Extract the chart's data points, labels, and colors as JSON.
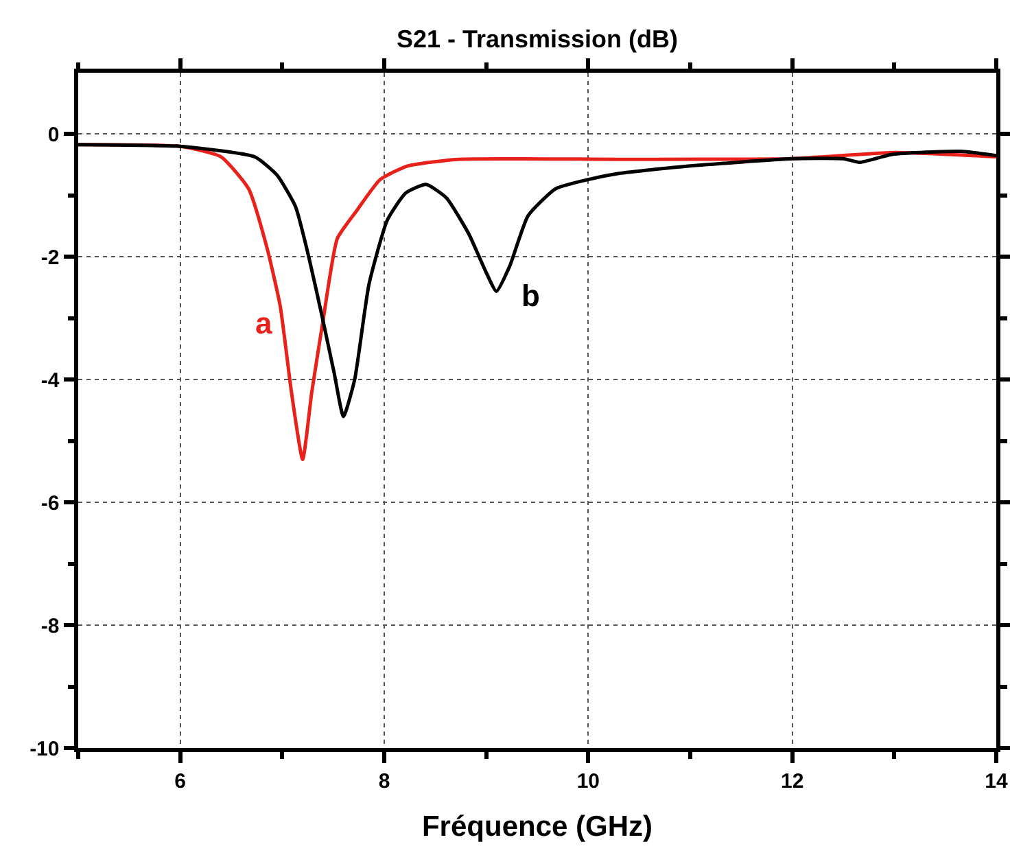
{
  "chart_data": {
    "type": "line",
    "title": "S21 - Transmission (dB)",
    "xlabel": "Fréquence (GHz)",
    "xlim": [
      5,
      14
    ],
    "ylim": [
      -10,
      1
    ],
    "xticks": [
      {
        "value": 5,
        "label": null
      },
      6,
      {
        "value": 7,
        "label": null
      },
      8,
      {
        "value": 9,
        "label": null
      },
      10,
      {
        "value": 11,
        "label": null
      },
      12,
      {
        "value": 13,
        "label": null
      },
      14
    ],
    "yticks": [
      -10,
      {
        "value": -9,
        "label": null
      },
      -8,
      {
        "value": -7,
        "label": null
      },
      -6,
      {
        "value": -5,
        "label": null
      },
      -4,
      {
        "value": -3,
        "label": null
      },
      -2,
      {
        "value": -1,
        "label": null
      },
      0
    ],
    "grid": true,
    "legend": false,
    "marker": "none",
    "line_style": "solid",
    "series": [
      {
        "name": "a",
        "color": "#e8221b",
        "x": [
          5,
          6,
          6.4,
          6.67,
          6.85,
          6.98,
          7.09,
          7.2,
          7.29,
          7.4,
          7.54,
          7.72,
          7.96,
          8.23,
          8.72,
          10.3,
          12,
          13,
          14
        ],
        "values": [
          -0.17,
          -0.2,
          -0.37,
          -0.89,
          -1.85,
          -2.8,
          -4.2,
          -5.3,
          -4.2,
          -3.04,
          -1.7,
          -1.27,
          -0.74,
          -0.52,
          -0.41,
          -0.41,
          -0.4,
          -0.3,
          -0.37
        ]
      },
      {
        "name": "b",
        "color": "#000000",
        "x": [
          5,
          6,
          6.73,
          6.95,
          7.13,
          7.26,
          7.4,
          7.51,
          7.6,
          7.71,
          7.85,
          8.03,
          8.21,
          8.41,
          8.61,
          8.83,
          8.99,
          9.1,
          9.23,
          9.41,
          9.68,
          10,
          10.3,
          10.98,
          12,
          12.5,
          12.66,
          12.98,
          13.65,
          14
        ],
        "values": [
          -0.17,
          -0.2,
          -0.37,
          -0.67,
          -1.18,
          -2.0,
          -3.04,
          -3.9,
          -4.6,
          -4.0,
          -2.45,
          -1.4,
          -0.96,
          -0.82,
          -1.04,
          -1.63,
          -2.22,
          -2.56,
          -2.15,
          -1.33,
          -0.89,
          -0.74,
          -0.64,
          -0.52,
          -0.4,
          -0.4,
          -0.46,
          -0.33,
          -0.28,
          -0.35
        ]
      }
    ]
  }
}
